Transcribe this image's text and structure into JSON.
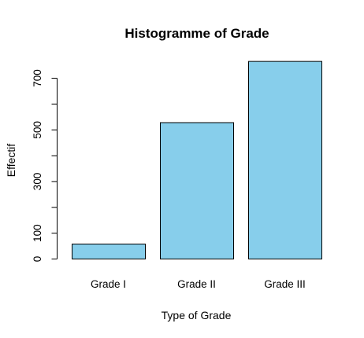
{
  "chart_data": {
    "type": "bar",
    "title": "Histogramme of Grade",
    "xlabel": "Type of Grade",
    "ylabel": "Effectif",
    "categories": [
      "Grade I",
      "Grade II",
      "Grade III"
    ],
    "values": [
      58,
      528,
      765
    ],
    "ylim": [
      0,
      800
    ],
    "yticks": [
      0,
      100,
      200,
      300,
      400,
      500,
      600,
      700
    ],
    "ytick_labels": {
      "0": "0",
      "100": "100",
      "300": "300",
      "500": "500",
      "700": "700"
    },
    "bar_color": "#87CEEB",
    "grid": false,
    "legend": "none"
  }
}
